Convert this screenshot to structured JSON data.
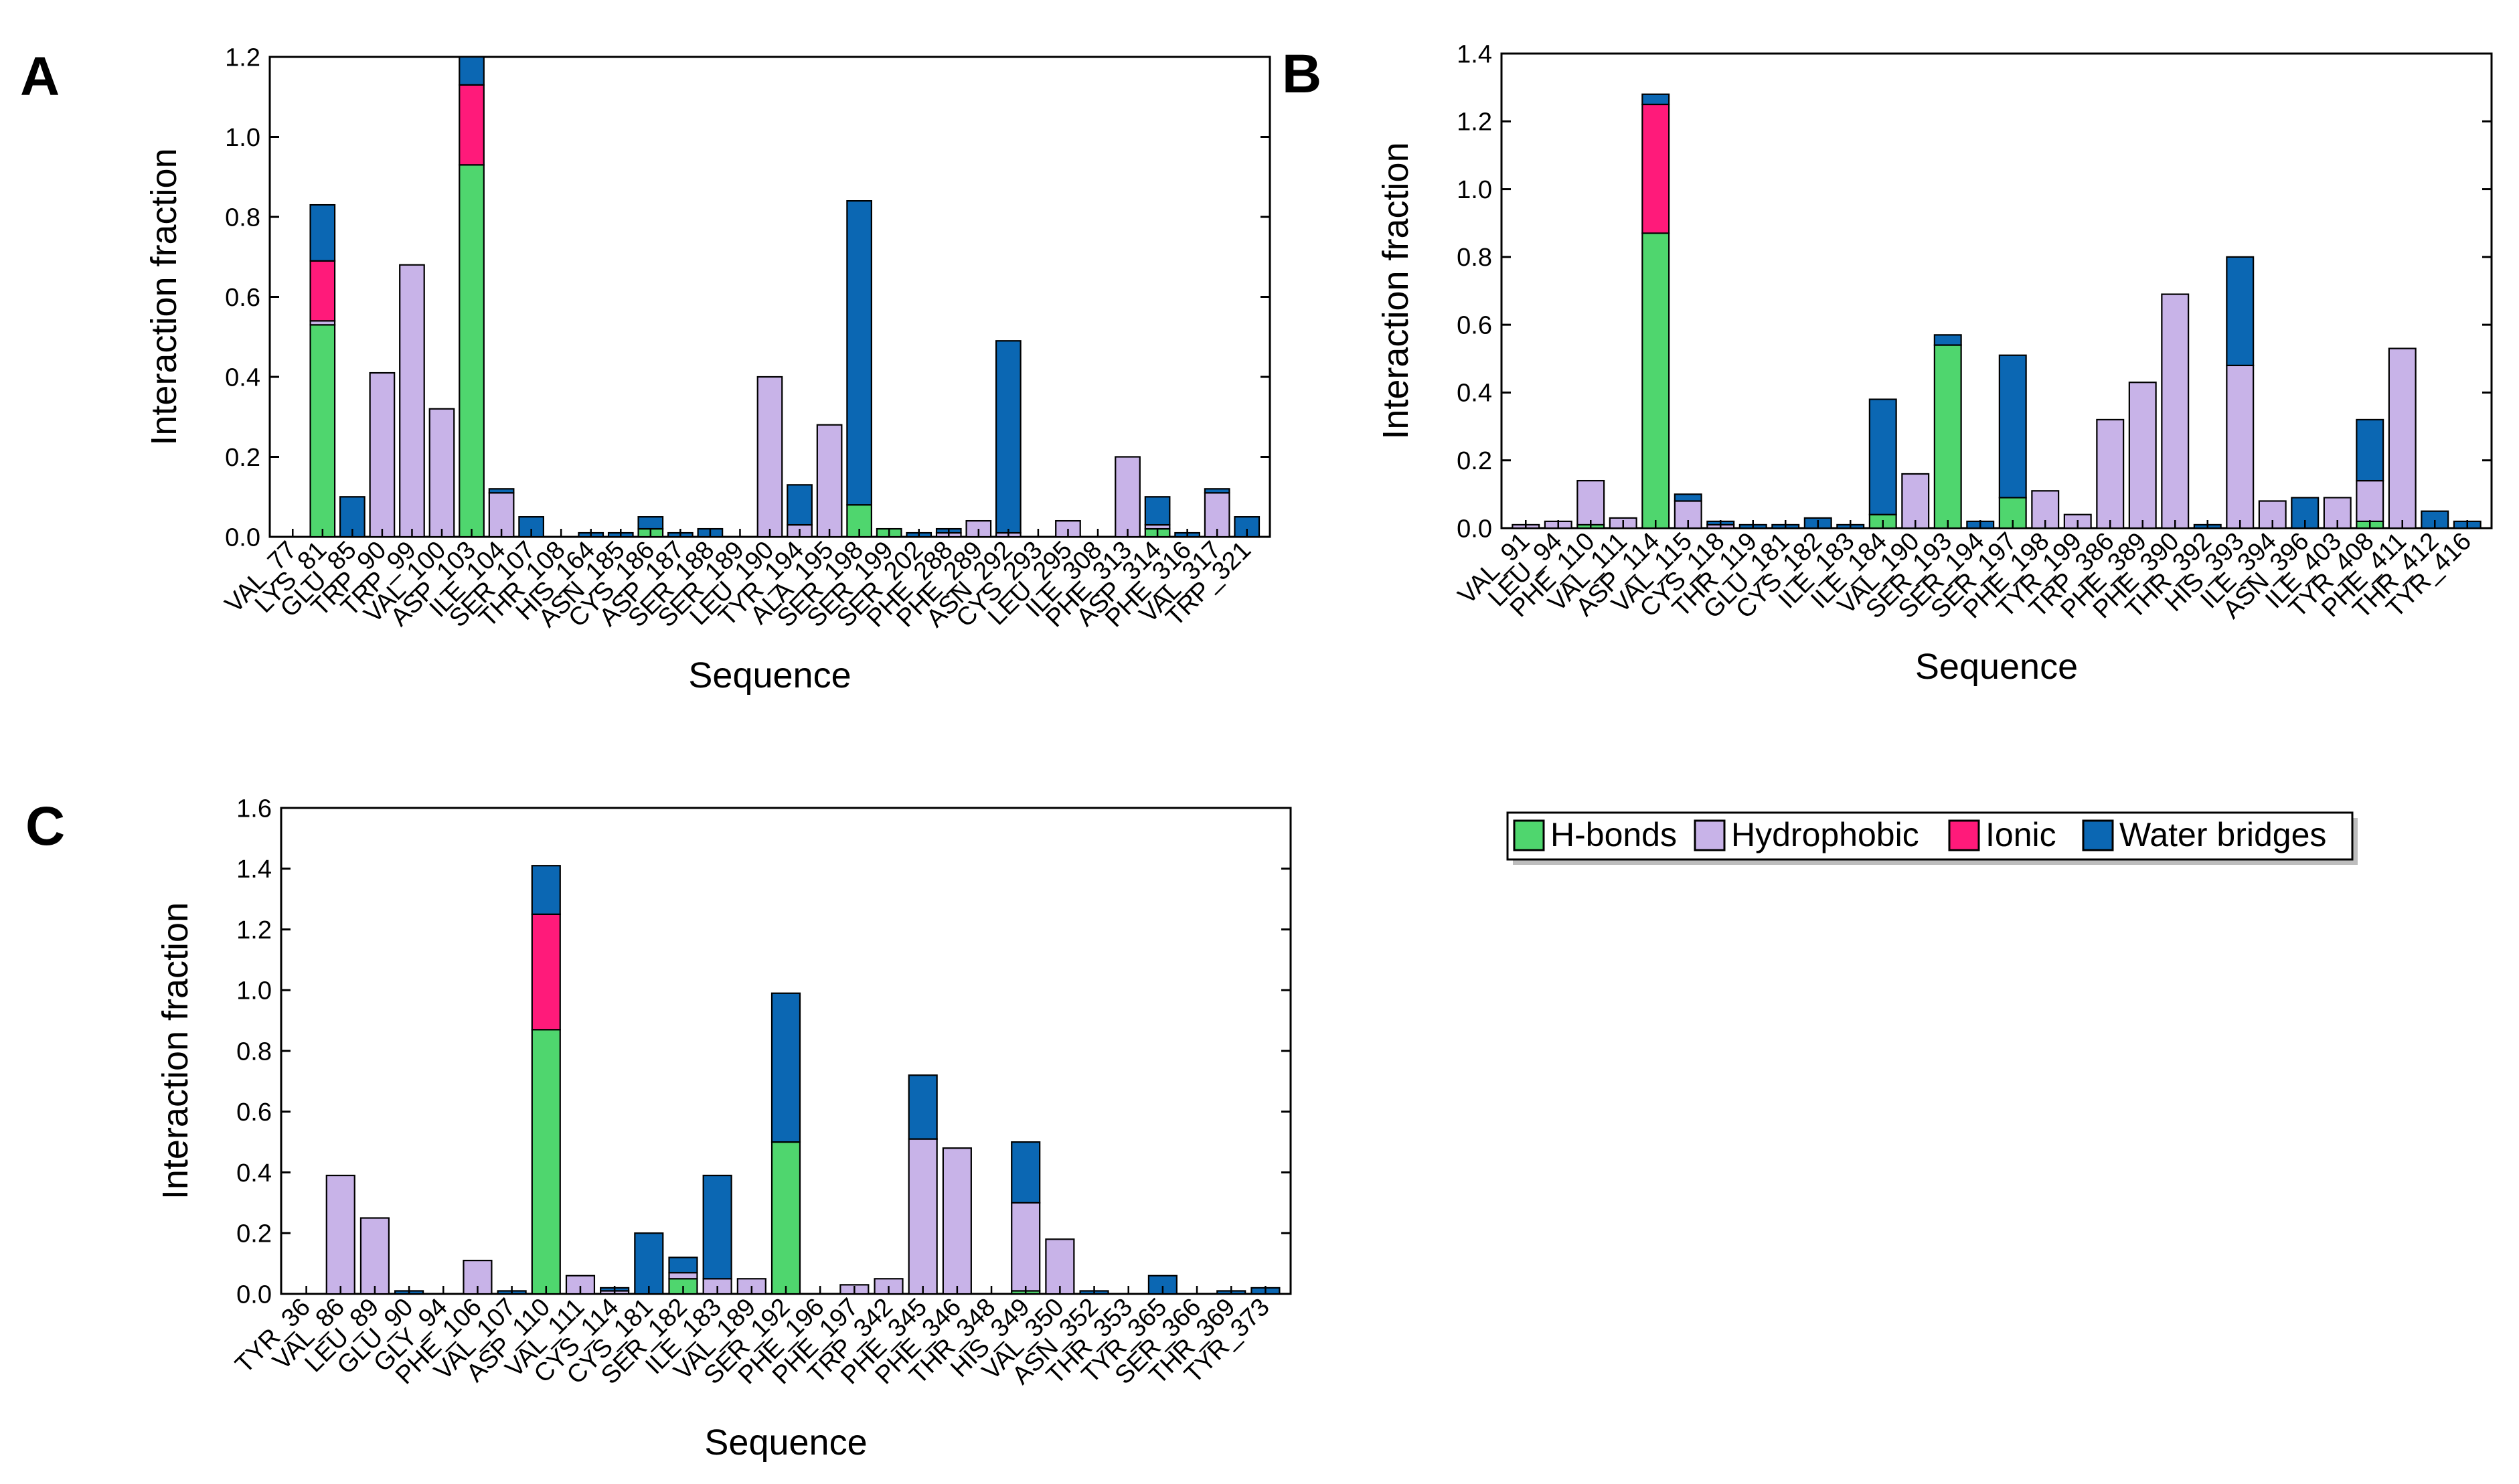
{
  "legend": {
    "placement": "right-of-panel-C",
    "items": [
      {
        "label": "H-bonds",
        "color": "#4fd66e"
      },
      {
        "label": "Hydrophobic",
        "color": "#c8b3e8"
      },
      {
        "label": "Ionic",
        "color": "#ff1a7a"
      },
      {
        "label": "Water bridges",
        "color": "#0b67b3"
      }
    ]
  },
  "chart_data": [
    {
      "panel": "A",
      "type": "bar",
      "stacked": true,
      "xlabel": "Sequence",
      "ylabel": "Interaction fraction",
      "ylim": [
        0,
        1.2
      ],
      "yticks": [
        "0.0",
        "0.2",
        "0.4",
        "0.6",
        "0.8",
        "1.0",
        "1.2"
      ],
      "categories": [
        "VAL_77",
        "LYS_81",
        "GLU_85",
        "TRP_90",
        "TRP_99",
        "VAL_100",
        "ASP_103",
        "ILE_104",
        "SER_107",
        "THR_108",
        "HIS_164",
        "ASN_185",
        "CYS_186",
        "ASP_187",
        "SER_188",
        "SER_189",
        "LEU_190",
        "TYR_194",
        "ALA_195",
        "SER_198",
        "SER_199",
        "SER_202",
        "PHE_288",
        "PHE_289",
        "ASN_292",
        "CYS_293",
        "LEU_295",
        "ILE_308",
        "PHE_313",
        "ASP_314",
        "PHE_316",
        "VAL_317",
        "TRP_321"
      ],
      "series": [
        {
          "name": "H-bonds",
          "values": [
            0,
            0.53,
            0,
            0,
            0,
            0,
            0.93,
            0,
            0,
            0,
            0,
            0,
            0.02,
            0,
            0,
            0,
            0,
            0,
            0,
            0.08,
            0.02,
            0,
            0,
            0,
            0,
            0,
            0,
            0,
            0,
            0.02,
            0,
            0,
            0
          ]
        },
        {
          "name": "Hydrophobic",
          "values": [
            0,
            0.01,
            0,
            0.41,
            0.68,
            0.32,
            0,
            0.11,
            0,
            0,
            0,
            0,
            0,
            0,
            0,
            0,
            0.4,
            0.03,
            0.28,
            0,
            0,
            0,
            0.01,
            0.04,
            0.01,
            0,
            0.04,
            0,
            0.2,
            0.01,
            0,
            0.11,
            0
          ]
        },
        {
          "name": "Ionic",
          "values": [
            0,
            0.15,
            0,
            0,
            0,
            0,
            0.2,
            0,
            0,
            0,
            0,
            0,
            0,
            0,
            0,
            0,
            0,
            0,
            0,
            0,
            0,
            0,
            0,
            0,
            0,
            0,
            0,
            0,
            0,
            0,
            0,
            0,
            0
          ]
        },
        {
          "name": "Water bridges",
          "values": [
            0,
            0.14,
            0.1,
            0,
            0,
            0,
            0.07,
            0.01,
            0.05,
            0,
            0.01,
            0.01,
            0.03,
            0.01,
            0.02,
            0,
            0,
            0.1,
            0,
            0.76,
            0,
            0.01,
            0.01,
            0,
            0.48,
            0,
            0,
            0,
            0,
            0.07,
            0.01,
            0.01,
            0.05
          ]
        }
      ]
    },
    {
      "panel": "B",
      "type": "bar",
      "stacked": true,
      "xlabel": "Sequence",
      "ylabel": "Interaction fraction",
      "ylim": [
        0,
        1.4
      ],
      "yticks": [
        "0.0",
        "0.2",
        "0.4",
        "0.6",
        "0.8",
        "1.0",
        "1.2",
        "1.4"
      ],
      "categories": [
        "VAL_91",
        "LEU_94",
        "PHE_110",
        "VAL_111",
        "ASP_114",
        "VAL_115",
        "CYS_118",
        "THR_119",
        "GLU_181",
        "CYS_182",
        "ILE_183",
        "ILE_184",
        "VAL_190",
        "SER_193",
        "SER_194",
        "SER_197",
        "PHE_198",
        "TYR_199",
        "TRP_386",
        "PHE_389",
        "PHE_390",
        "THR_392",
        "HIS_393",
        "ILE_394",
        "ASN_396",
        "ILE_403",
        "TYR_408",
        "PHE_411",
        "THR_412",
        "TYR_416"
      ],
      "series": [
        {
          "name": "H-bonds",
          "values": [
            0,
            0,
            0.01,
            0,
            0.87,
            0,
            0,
            0,
            0,
            0,
            0,
            0.04,
            0,
            0.54,
            0,
            0.09,
            0,
            0,
            0,
            0,
            0,
            0,
            0,
            0,
            0,
            0,
            0.02,
            0,
            0,
            0
          ]
        },
        {
          "name": "Hydrophobic",
          "values": [
            0.01,
            0.02,
            0.13,
            0.03,
            0,
            0.08,
            0.01,
            0,
            0,
            0,
            0,
            0,
            0.16,
            0,
            0,
            0,
            0.11,
            0.04,
            0.32,
            0.43,
            0.69,
            0,
            0.48,
            0.08,
            0,
            0.09,
            0.12,
            0.53,
            0,
            0
          ]
        },
        {
          "name": "Ionic",
          "values": [
            0,
            0,
            0,
            0,
            0.38,
            0,
            0,
            0,
            0,
            0,
            0,
            0,
            0,
            0,
            0,
            0,
            0,
            0,
            0,
            0,
            0,
            0,
            0,
            0,
            0,
            0,
            0,
            0,
            0,
            0
          ]
        },
        {
          "name": "Water bridges",
          "values": [
            0,
            0,
            0,
            0,
            0.03,
            0.02,
            0.01,
            0.01,
            0.01,
            0.03,
            0.01,
            0.34,
            0,
            0.03,
            0.02,
            0.42,
            0,
            0,
            0,
            0,
            0,
            0.01,
            0.32,
            0,
            0.09,
            0,
            0.18,
            0,
            0.05,
            0.02
          ]
        }
      ]
    },
    {
      "panel": "C",
      "type": "bar",
      "stacked": true,
      "xlabel": "Sequence",
      "ylabel": "Interaction fraction",
      "ylim": [
        0,
        1.6
      ],
      "yticks": [
        "0.0",
        "0.2",
        "0.4",
        "0.6",
        "0.8",
        "1.0",
        "1.2",
        "1.4",
        "1.6"
      ],
      "categories": [
        "TYR_36",
        "VAL_86",
        "LEU_89",
        "GLU_90",
        "GLY_94",
        "PHE_106",
        "VAL_107",
        "ASP_110",
        "VAL_111",
        "CYS_114",
        "CYS_181",
        "SER_182",
        "ILE_183",
        "VAL_189",
        "SER_192",
        "PHE_196",
        "PHE_197",
        "TRP_342",
        "PHE_345",
        "PHE_346",
        "THR_348",
        "HIS_349",
        "VAL_350",
        "ASN_352",
        "THR_353",
        "TYR_365",
        "SER_366",
        "THR_369",
        "TYR_373"
      ],
      "series": [
        {
          "name": "H-bonds",
          "values": [
            0,
            0,
            0,
            0,
            0,
            0,
            0,
            0.87,
            0,
            0,
            0,
            0.05,
            0,
            0,
            0.5,
            0,
            0,
            0,
            0,
            0,
            0,
            0.01,
            0,
            0,
            0,
            0,
            0,
            0,
            0
          ]
        },
        {
          "name": "Hydrophobic",
          "values": [
            0,
            0.39,
            0.25,
            0,
            0,
            0.11,
            0,
            0,
            0.06,
            0.01,
            0,
            0.02,
            0.05,
            0.05,
            0,
            0,
            0.03,
            0.05,
            0.51,
            0.48,
            0,
            0.29,
            0.18,
            0,
            0,
            0,
            0,
            0,
            0
          ]
        },
        {
          "name": "Ionic",
          "values": [
            0,
            0,
            0,
            0,
            0,
            0,
            0,
            0.38,
            0,
            0,
            0,
            0,
            0,
            0,
            0,
            0,
            0,
            0,
            0,
            0,
            0,
            0,
            0,
            0,
            0,
            0,
            0,
            0,
            0
          ]
        },
        {
          "name": "Water bridges",
          "values": [
            0,
            0,
            0,
            0.01,
            0,
            0,
            0.01,
            0.16,
            0,
            0.01,
            0.2,
            0.05,
            0.34,
            0,
            0.49,
            0,
            0,
            0,
            0.21,
            0,
            0,
            0.2,
            0,
            0.01,
            0,
            0.06,
            0,
            0.01,
            0.02
          ]
        }
      ]
    }
  ],
  "panel_labels": [
    "A",
    "B",
    "C"
  ]
}
